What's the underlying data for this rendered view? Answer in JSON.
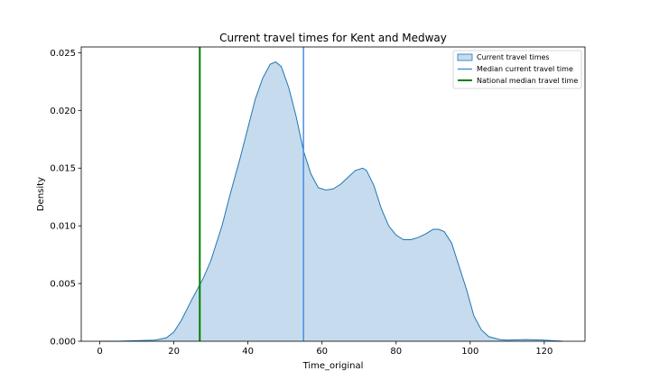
{
  "chart_data": {
    "type": "area",
    "title": "Current travel times for Kent and Medway",
    "xlabel": "Time_original",
    "ylabel": "Density",
    "xlim": [
      -5,
      131
    ],
    "ylim": [
      0,
      0.0255
    ],
    "x_ticks": [
      0,
      20,
      40,
      60,
      80,
      100,
      120
    ],
    "y_ticks": [
      0.0,
      0.005,
      0.01,
      0.015,
      0.02,
      0.025
    ],
    "x_tick_labels": [
      "0",
      "20",
      "40",
      "60",
      "80",
      "100",
      "120"
    ],
    "y_tick_labels": [
      "0.000",
      "0.005",
      "0.010",
      "0.015",
      "0.020",
      "0.025"
    ],
    "grid": false,
    "legend_position": "top-right",
    "series": [
      {
        "name": "Current travel times",
        "kind": "kde-area",
        "color": "#1f77b4",
        "fill_color": "#c6dbed",
        "x": [
          0,
          5,
          10,
          15,
          18,
          20,
          22,
          25,
          28,
          30,
          33,
          35,
          38,
          40,
          42,
          44,
          46,
          47.5,
          49,
          51,
          53,
          55,
          57,
          59,
          61,
          63,
          65,
          67,
          69,
          71,
          72,
          74,
          76,
          78,
          80,
          82,
          84,
          86,
          88,
          90,
          91.5,
          93,
          95,
          97,
          99,
          101,
          103,
          105,
          108,
          110,
          115,
          120,
          125
        ],
        "y": [
          0.0,
          0.0,
          5e-05,
          0.0001,
          0.0003,
          0.0008,
          0.0018,
          0.0037,
          0.0055,
          0.007,
          0.01,
          0.0125,
          0.016,
          0.0185,
          0.021,
          0.0228,
          0.024,
          0.0242,
          0.0238,
          0.022,
          0.0195,
          0.0165,
          0.0145,
          0.0133,
          0.0131,
          0.0132,
          0.0136,
          0.0142,
          0.0148,
          0.015,
          0.0148,
          0.0135,
          0.0115,
          0.01,
          0.0092,
          0.0088,
          0.0088,
          0.009,
          0.0093,
          0.0097,
          0.0097,
          0.0095,
          0.0085,
          0.0065,
          0.0045,
          0.0022,
          0.001,
          0.0004,
          0.00015,
          0.0001,
          0.00015,
          0.0001,
          0.0
        ]
      },
      {
        "name": "Median current travel time",
        "kind": "vline",
        "x_value": 55,
        "color": "#4a90e2"
      },
      {
        "name": "National median travel time",
        "kind": "vline",
        "x_value": 27,
        "color": "#008000"
      }
    ]
  }
}
